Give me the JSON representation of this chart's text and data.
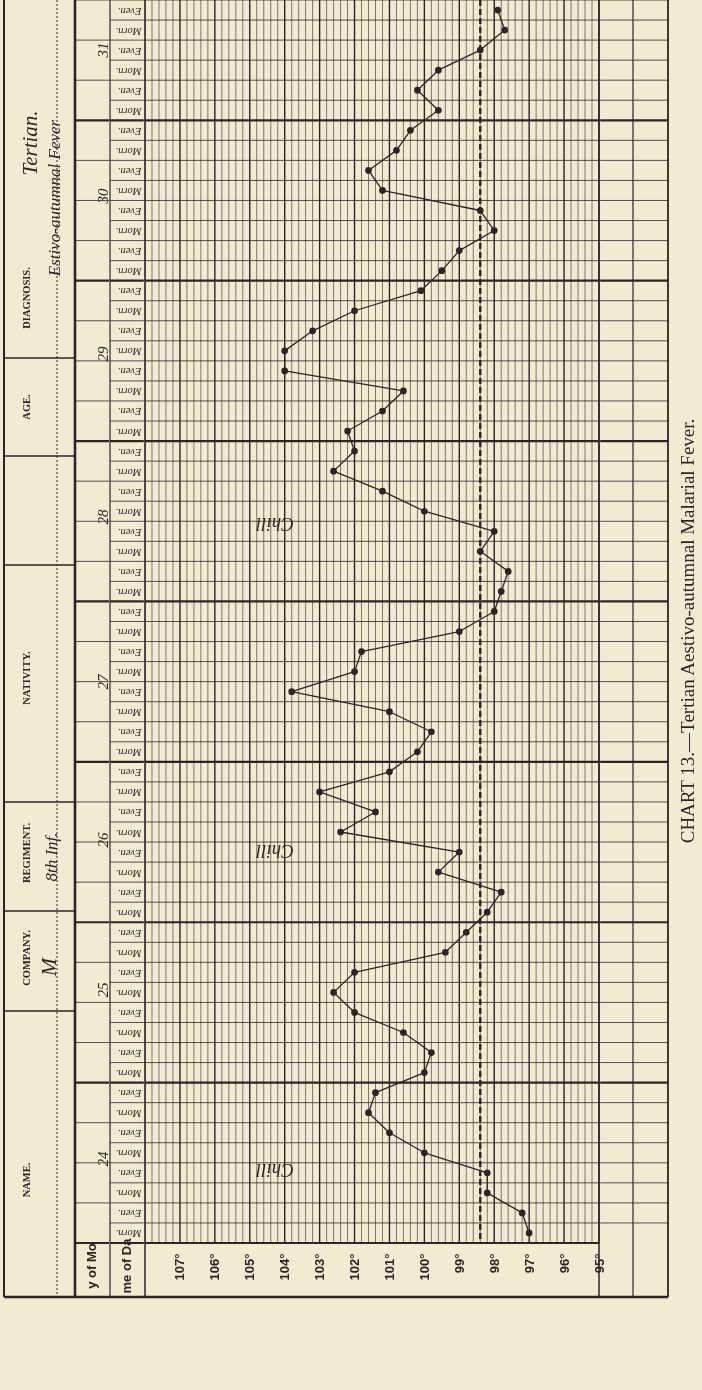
{
  "chart_data": {
    "type": "line",
    "orientation": "horizontal",
    "title": "CHART 13.—Tertian Aestivo-autumnal Malarial Fever.",
    "categories": [
      "Even.",
      "Morn.",
      "Even.",
      "Morn.",
      "Even.",
      "Morn.",
      "Even.",
      "Morn.",
      "Even.",
      "Morn.",
      "Even.",
      "Morn.",
      "Even.",
      "Morn.",
      "Even.",
      "Morn.",
      "Even.",
      "Morn.",
      "Even.",
      "Morn.",
      "Even.",
      "Morn.",
      "Even.",
      "Morn.",
      "Even.",
      "Morn.",
      "Even.",
      "Morn.",
      "Even.",
      "Morn.",
      "Even.",
      "Morn.",
      "Even.",
      "Morn.",
      "Even.",
      "Morn.",
      "Even.",
      "Morn.",
      "Even.",
      "Morn.",
      "Even.",
      "Morn.",
      "Even.",
      "Morn.",
      "Even.",
      "Morn.",
      "Even.",
      "Morn.",
      "Even.",
      "Morn.",
      "Even.",
      "Morn.",
      "Even.",
      "Morn.",
      "Even.",
      "Morn.",
      "Even.",
      "Morn.",
      "Even.",
      "Morn.",
      "Even.",
      "Morn."
    ],
    "values": [
      97.9,
      97.7,
      98.4,
      99.6,
      100.2,
      99.6,
      100.4,
      100.8,
      101.6,
      101.2,
      98.4,
      98.0,
      99.0,
      99.5,
      100.1,
      102.0,
      103.2,
      104.0,
      104.0,
      100.6,
      101.2,
      102.2,
      102.0,
      102.6,
      101.2,
      100.0,
      98.0,
      98.4,
      97.6,
      97.8,
      98.0,
      99.0,
      101.8,
      102.0,
      103.8,
      101.0,
      99.8,
      100.2,
      101.0,
      103.0,
      101.4,
      102.4,
      99.0,
      99.6,
      97.8,
      98.2,
      98.8,
      99.4,
      102.0,
      102.6,
      102.0,
      100.6,
      99.8,
      100.0,
      101.4,
      101.6,
      101.0,
      100.0,
      98.2,
      98.2,
      97.2,
      97.0
    ],
    "color": "#2b2622",
    "marker": "circle",
    "line_style": "solid",
    "grid": true,
    "xlim": [
      108,
      95
    ],
    "xticks": [
      {
        "value": 108,
        "label": null
      },
      {
        "value": 107.8,
        "label": null
      },
      {
        "value": 107.6,
        "label": null
      },
      {
        "value": 107.4,
        "label": null
      },
      {
        "value": 107.2,
        "label": null
      },
      {
        "value": 107,
        "label": "107°"
      },
      {
        "value": 106.8,
        "label": null
      },
      {
        "value": 106.6,
        "label": null
      },
      {
        "value": 106.4,
        "label": null
      },
      {
        "value": 106.2,
        "label": null
      },
      {
        "value": 106,
        "label": "106°"
      },
      {
        "value": 105.8,
        "label": null
      },
      {
        "value": 105.6,
        "label": null
      },
      {
        "value": 105.4,
        "label": null
      },
      {
        "value": 105.2,
        "label": null
      },
      {
        "value": 105,
        "label": "105°"
      },
      {
        "value": 104.8,
        "label": null
      },
      {
        "value": 104.6,
        "label": null
      },
      {
        "value": 104.4,
        "label": null
      },
      {
        "value": 104.2,
        "label": null
      },
      {
        "value": 104,
        "label": "104°"
      },
      {
        "value": 103.8,
        "label": null
      },
      {
        "value": 103.6,
        "label": null
      },
      {
        "value": 103.4,
        "label": null
      },
      {
        "value": 103.2,
        "label": null
      },
      {
        "value": 103,
        "label": "103°"
      },
      {
        "value": 102.8,
        "label": null
      },
      {
        "value": 102.6,
        "label": null
      },
      {
        "value": 102.4,
        "label": null
      },
      {
        "value": 102.2,
        "label": null
      },
      {
        "value": 102,
        "label": "102°"
      },
      {
        "value": 101.8,
        "label": null
      },
      {
        "value": 101.6,
        "label": null
      },
      {
        "value": 101.4,
        "label": null
      },
      {
        "value": 101.2,
        "label": null
      },
      {
        "value": 101,
        "label": "101°"
      },
      {
        "value": 100.8,
        "label": null
      },
      {
        "value": 100.6,
        "label": null
      },
      {
        "value": 100.4,
        "label": null
      },
      {
        "value": 100.2,
        "label": null
      },
      {
        "value": 100,
        "label": "100°"
      },
      {
        "value": 99.8,
        "label": null
      },
      {
        "value": 99.6,
        "label": null
      },
      {
        "value": 99.4,
        "label": null
      },
      {
        "value": 99.2,
        "label": null
      },
      {
        "value": 99,
        "label": "99°"
      },
      {
        "value": 98.8,
        "label": null
      },
      {
        "value": 98.6,
        "label": null
      },
      {
        "value": 98.4,
        "label": null
      },
      {
        "value": 98.2,
        "label": null
      },
      {
        "value": 98,
        "label": "98°"
      },
      {
        "value": 97.8,
        "label": null
      },
      {
        "value": 97.6,
        "label": null
      },
      {
        "value": 97.4,
        "label": null
      },
      {
        "value": 97.2,
        "label": null
      },
      {
        "value": 97,
        "label": "97°"
      },
      {
        "value": 96.8,
        "label": null
      },
      {
        "value": 96.6,
        "label": null
      },
      {
        "value": 96.4,
        "label": null
      },
      {
        "value": 96.2,
        "label": null
      },
      {
        "value": 96,
        "label": "96°"
      },
      {
        "value": 95.8,
        "label": null
      },
      {
        "value": 95.6,
        "label": null
      },
      {
        "value": 95.4,
        "label": null
      },
      {
        "value": 95.2,
        "label": null
      },
      {
        "value": 95,
        "label": "95°"
      }
    ],
    "ref_lines": [
      {
        "axis": "x",
        "value": 98.4,
        "line_style": "dashed",
        "color": "#2b2622"
      }
    ],
    "annotations": [
      "NAME.",
      "COMPANY.",
      "REGIMENT.",
      "NATIVITY.",
      "AGE.",
      "DIAGNOSIS.",
      "M",
      "8th Inf.",
      "Tertian.",
      "Estivo-autumnal Fever",
      "y of Mo",
      "me of Da",
      "31",
      "30",
      "29",
      "28",
      "27",
      "26",
      "25",
      "24",
      "Chill",
      "Chill",
      "Chill"
    ]
  }
}
